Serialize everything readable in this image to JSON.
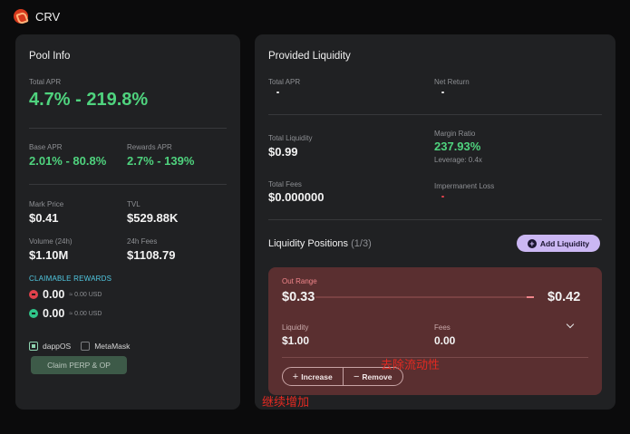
{
  "header": {
    "token_name": "CRV"
  },
  "pool_info": {
    "title": "Pool Info",
    "total_apr_label": "Total APR",
    "total_apr": "4.7% - 219.8%",
    "base_apr_label": "Base APR",
    "base_apr": "2.01% - 80.8%",
    "rewards_apr_label": "Rewards APR",
    "rewards_apr": "2.7% - 139%",
    "mark_price_label": "Mark Price",
    "mark_price": "$0.41",
    "tvl_label": "TVL",
    "tvl": "$529.88K",
    "volume_label": "Volume (24h)",
    "volume": "$1.10M",
    "fees_label": "24h Fees",
    "fees": "$1108.79",
    "claimable_title": "CLAIMABLE REWARDS",
    "rewards": [
      {
        "amount": "0.00",
        "usd": "≈ 0.00 USD",
        "icon": "perp-token-icon"
      },
      {
        "amount": "0.00",
        "usd": "≈ 0.00 USD",
        "icon": "op-token-icon"
      }
    ],
    "wallets": [
      {
        "label": "dappOS",
        "checked": true
      },
      {
        "label": "MetaMask",
        "checked": false
      }
    ],
    "claim_button": "Claim PERP & OP"
  },
  "provided": {
    "title": "Provided Liquidity",
    "total_apr_label": "Total APR",
    "net_return_label": "Net Return",
    "total_liquidity_label": "Total Liquidity",
    "total_liquidity": "$0.99",
    "margin_ratio_label": "Margin Ratio",
    "margin_ratio": "237.93%",
    "leverage": "Leverage: 0.4x",
    "total_fees_label": "Total Fees",
    "total_fees": "$0.000000",
    "impermanent_loss_label": "Impermanent Loss",
    "positions_title": "Liquidity Positions",
    "positions_count": "(1/3)",
    "add_button": "Add Liquidity",
    "position": {
      "status": "Out Range",
      "range_low": "$0.33",
      "range_high": "$0.42",
      "liquidity_label": "Liquidity",
      "liquidity": "$1.00",
      "fees_label": "Fees",
      "fees": "0.00",
      "increase_label": "Increase",
      "remove_label": "Remove"
    }
  },
  "annotations": {
    "remove_note": "去除流动性",
    "increase_note": "继续增加"
  },
  "colors": {
    "accent_green": "#4fd37e",
    "out_range_red": "#f0858a",
    "add_button_purple": "#cbb7f3",
    "annotation_red": "#e32a22"
  }
}
